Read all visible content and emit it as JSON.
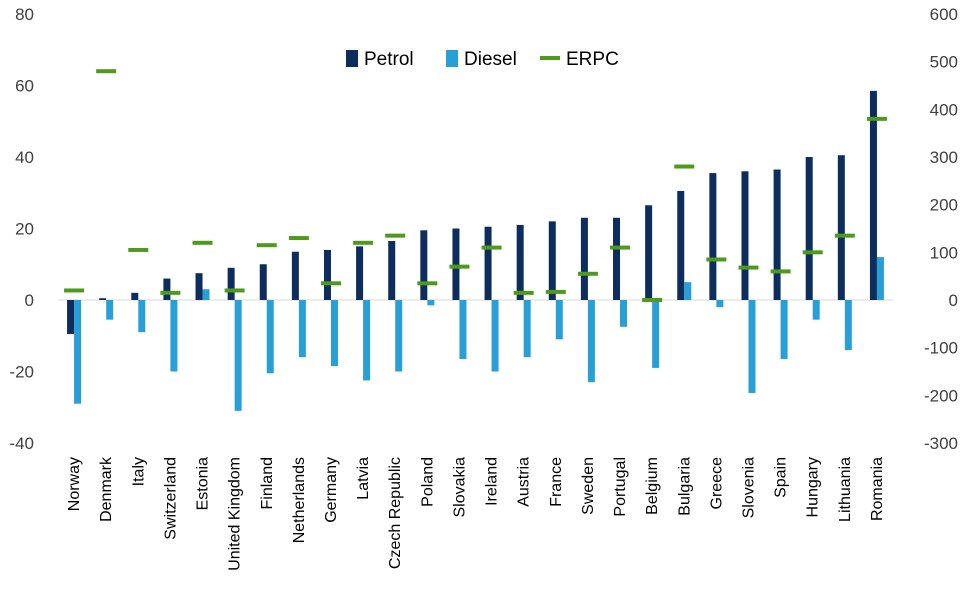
{
  "chart_data": {
    "type": "bar",
    "title": "",
    "legend_position": "top-center",
    "grid": false,
    "categories": [
      "Norway",
      "Denmark",
      "Italy",
      "Switzerland",
      "Estonia",
      "United Kingdom",
      "Finland",
      "Netherlands",
      "Germany",
      "Latvia",
      "Czech Republic",
      "Poland",
      "Slovakia",
      "Ireland",
      "Austria",
      "France",
      "Sweden",
      "Portugal",
      "Belgium",
      "Bulgaria",
      "Greece",
      "Slovenia",
      "Spain",
      "Hungary",
      "Lithuania",
      "Romania"
    ],
    "series": [
      {
        "name": "Petrol",
        "axis": "left",
        "kind": "bar",
        "color": "#0d2d5e",
        "values": [
          -9.5,
          0.5,
          2,
          6,
          7.5,
          9,
          10,
          13.5,
          14,
          15,
          16.5,
          19.5,
          20,
          20.5,
          21,
          22,
          23,
          23,
          26.5,
          30.5,
          35.5,
          36,
          36.5,
          40,
          40.5,
          58.5
        ]
      },
      {
        "name": "Diesel",
        "axis": "left",
        "kind": "bar",
        "color": "#28a0d7",
        "values": [
          -29,
          -5.5,
          -9,
          -20,
          3,
          -31,
          -20.5,
          -16,
          -18.5,
          -22.5,
          -20,
          -1.5,
          -16.5,
          -20,
          -16,
          -11,
          -23,
          -7.5,
          -19,
          5,
          -2,
          -26,
          -16.5,
          -5.5,
          -14,
          12
        ]
      },
      {
        "name": "ERPC",
        "axis": "right",
        "kind": "marker",
        "color": "#4e9a1c",
        "values": [
          20,
          480,
          105,
          15,
          120,
          20,
          115,
          130,
          35,
          120,
          135,
          35,
          70,
          110,
          15,
          17,
          55,
          110,
          0,
          280,
          85,
          68,
          60,
          100,
          135,
          380
        ]
      }
    ],
    "left_axis": {
      "min": -40,
      "max": 80,
      "ticks": [
        "80",
        "60",
        "40",
        "20",
        "0",
        "-20",
        "-40"
      ]
    },
    "right_axis": {
      "min": -300,
      "max": 600,
      "ticks": [
        "600",
        "500",
        "400",
        "300",
        "200",
        "100",
        "0",
        "-100",
        "-200",
        "-300"
      ]
    }
  }
}
